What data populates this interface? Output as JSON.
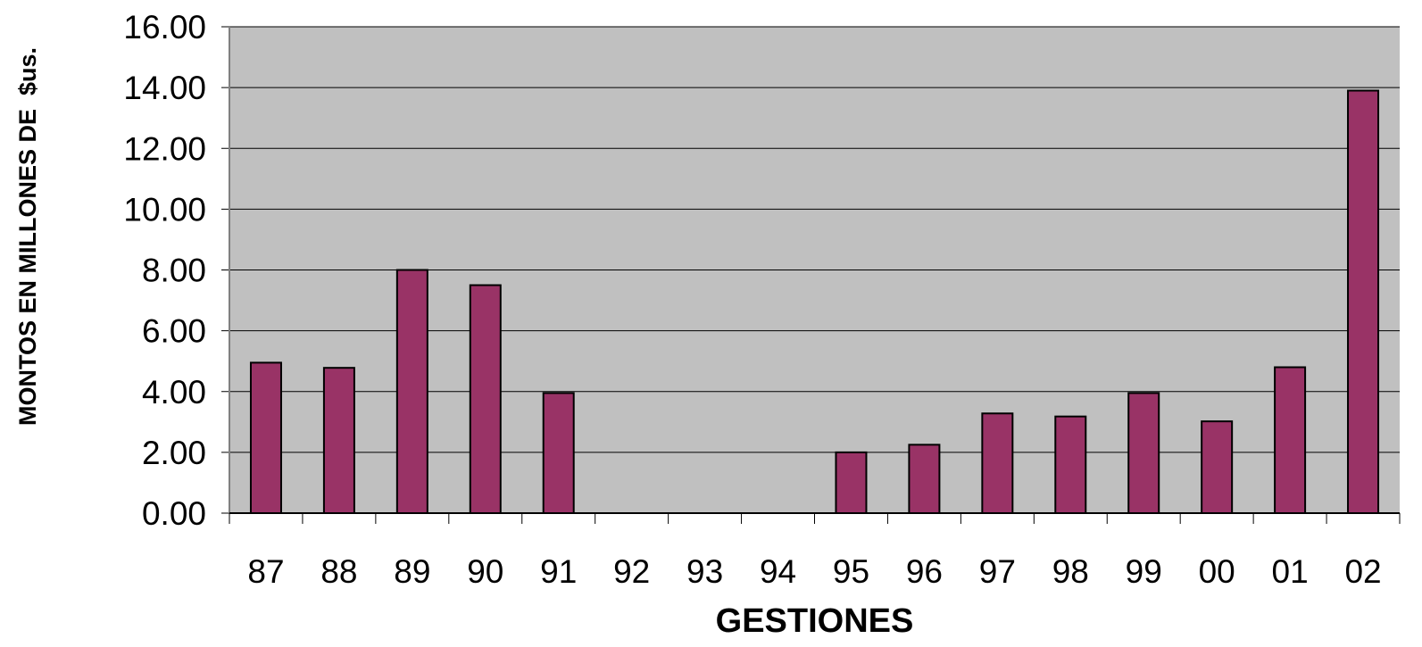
{
  "chart_data": {
    "type": "bar",
    "title": "",
    "xlabel": "GESTIONES",
    "ylabel": "MONTOS EN MILLONES DE  $us.",
    "categories": [
      "87",
      "88",
      "89",
      "90",
      "91",
      "92",
      "93",
      "94",
      "95",
      "96",
      "97",
      "98",
      "99",
      "00",
      "01",
      "02"
    ],
    "series": [
      {
        "values": [
          4.95,
          4.78,
          8.0,
          7.5,
          3.95,
          0,
          0,
          0,
          2.0,
          2.25,
          3.28,
          3.18,
          3.95,
          3.02,
          4.8,
          13.9
        ]
      }
    ],
    "yticks": [
      "0.00",
      "2.00",
      "4.00",
      "6.00",
      "8.00",
      "10.00",
      "12.00",
      "14.00",
      "16.00"
    ],
    "ylim": [
      0,
      16
    ],
    "grid": true,
    "legend": "none",
    "colors": {
      "bar": "#993366",
      "plot_background": "#c0c0c0",
      "gridline": "#000000",
      "bar_outline": "#000000"
    }
  }
}
